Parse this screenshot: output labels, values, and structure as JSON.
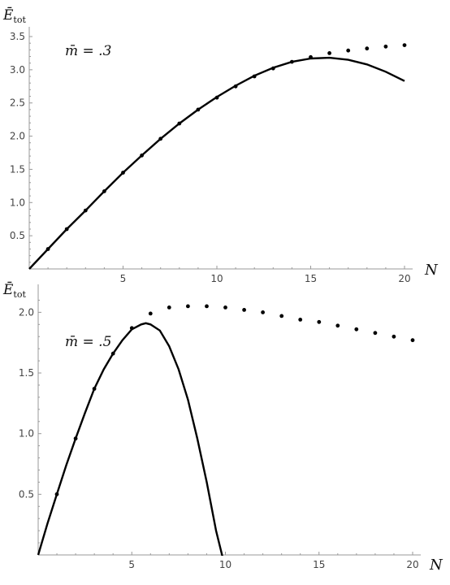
{
  "chart_data": [
    {
      "type": "scatter",
      "ylabel_main": "Ē",
      "ylabel_sub": "tot",
      "xlabel": "N",
      "annotation": "m̄ = .3",
      "xlim": [
        0,
        20
      ],
      "ylim": [
        0,
        3.5
      ],
      "x_ticks": [
        5,
        10,
        15,
        20
      ],
      "y_ticks": [
        0.5,
        1.0,
        1.5,
        2.0,
        2.5,
        3.0,
        3.5
      ],
      "grid": false,
      "series": [
        {
          "kind": "points",
          "x": [
            1,
            2,
            3,
            4,
            5,
            6,
            7,
            8,
            9,
            10,
            11,
            12,
            13,
            14,
            15,
            16,
            17,
            18,
            19,
            20
          ],
          "y": [
            0.3,
            0.6,
            0.88,
            1.17,
            1.45,
            1.71,
            1.96,
            2.19,
            2.4,
            2.58,
            2.75,
            2.9,
            3.02,
            3.12,
            3.19,
            3.25,
            3.29,
            3.32,
            3.35,
            3.37
          ]
        },
        {
          "kind": "line",
          "x": [
            0,
            1,
            2,
            3,
            4,
            5,
            6,
            7,
            8,
            9,
            10,
            11,
            12,
            13,
            14,
            15,
            16,
            17,
            18,
            19,
            20
          ],
          "y": [
            0.0,
            0.3,
            0.6,
            0.88,
            1.17,
            1.45,
            1.71,
            1.96,
            2.19,
            2.4,
            2.59,
            2.76,
            2.91,
            3.03,
            3.12,
            3.17,
            3.18,
            3.15,
            3.08,
            2.97,
            2.83
          ]
        }
      ]
    },
    {
      "type": "scatter",
      "ylabel_main": "Ē",
      "ylabel_sub": "tot",
      "xlabel": "N",
      "annotation": "m̄ = .5",
      "xlim": [
        0,
        20
      ],
      "ylim": [
        0,
        2.15
      ],
      "x_ticks": [
        5,
        10,
        15,
        20
      ],
      "y_ticks": [
        0.5,
        1.0,
        1.5,
        2.0
      ],
      "grid": false,
      "series": [
        {
          "kind": "points",
          "x": [
            1,
            2,
            3,
            4,
            5,
            6,
            7,
            8,
            9,
            10,
            11,
            12,
            13,
            14,
            15,
            16,
            17,
            18,
            19,
            20
          ],
          "y": [
            0.5,
            0.96,
            1.37,
            1.66,
            1.87,
            1.99,
            2.04,
            2.05,
            2.05,
            2.04,
            2.02,
            2.0,
            1.97,
            1.94,
            1.92,
            1.89,
            1.86,
            1.83,
            1.8,
            1.77
          ]
        },
        {
          "kind": "line",
          "x": [
            0,
            0.5,
            1,
            1.5,
            2,
            2.5,
            3,
            3.5,
            4,
            4.5,
            5,
            5.5,
            5.75,
            6,
            6.5,
            7,
            7.5,
            8,
            8.5,
            9,
            9.5,
            9.9
          ],
          "y": [
            0.0,
            0.26,
            0.5,
            0.74,
            0.96,
            1.17,
            1.37,
            1.53,
            1.66,
            1.77,
            1.86,
            1.9,
            1.91,
            1.9,
            1.85,
            1.72,
            1.53,
            1.28,
            0.96,
            0.6,
            0.2,
            -0.05
          ]
        }
      ]
    }
  ]
}
